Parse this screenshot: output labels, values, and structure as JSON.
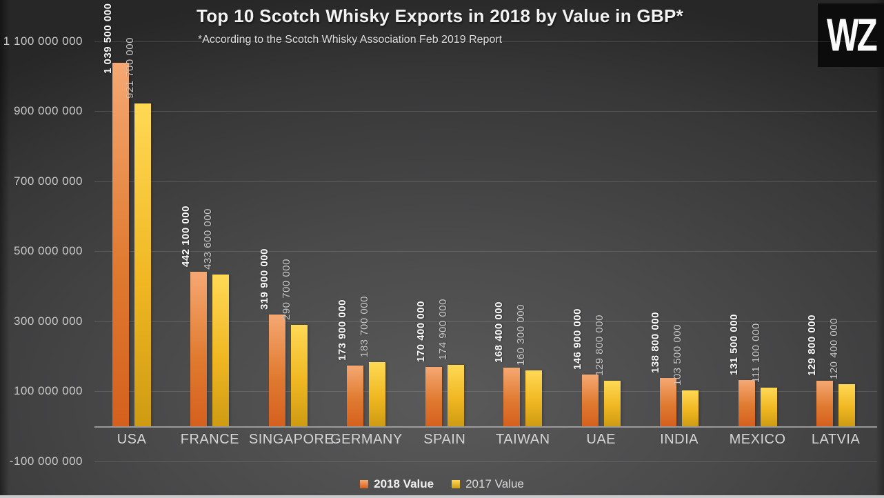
{
  "title": "Top 10 Scotch Whisky Exports in 2018 by Value in GBP*",
  "subtitle": "*According to the Scotch Whisky Association Feb 2019 Report",
  "logo_text": "WZ",
  "legend": [
    {
      "label": "2018 Value",
      "color_top": "#F5A873",
      "color_bottom": "#D5601E"
    },
    {
      "label": "2017 Value",
      "color_top": "#FFD955",
      "color_bottom": "#CE9B12"
    }
  ],
  "chart_data": {
    "type": "bar",
    "title": "Top 10 Scotch Whisky Exports in 2018 by Value in GBP*",
    "subtitle": "*According to the Scotch Whisky Association Feb 2019 Report",
    "categories": [
      "USA",
      "FRANCE",
      "SINGAPORE",
      "GERMANY",
      "SPAIN",
      "TAIWAN",
      "UAE",
      "INDIA",
      "MEXICO",
      "LATVIA"
    ],
    "series": [
      {
        "name": "2018 Value",
        "values": [
          1039500000,
          442100000,
          319900000,
          173900000,
          170400000,
          168400000,
          146900000,
          138800000,
          131500000,
          129800000
        ],
        "labels": [
          "1 039 500 000",
          "442 100 000",
          "319 900 000",
          "173 900 000",
          "170 400 000",
          "168 400 000",
          "146 900 000",
          "138 800 000",
          "131 500 000",
          "129 800 000"
        ],
        "color_top": "#F5A873",
        "color_mid": "#E07B31",
        "color_bottom": "#D5601E"
      },
      {
        "name": "2017 Value",
        "values": [
          921700000,
          433600000,
          290700000,
          183700000,
          174900000,
          160300000,
          129800000,
          103500000,
          111100000,
          120400000
        ],
        "labels": [
          "921 700 000",
          "433 600 000",
          "290 700 000",
          "183 700 000",
          "174 900 000",
          "160 300 000",
          "129 800 000",
          "103 500 000",
          "111 100 000",
          "120 400 000"
        ],
        "color_top": "#FFD955",
        "color_mid": "#F0B722",
        "color_bottom": "#CE9B12"
      }
    ],
    "ylabel": "",
    "xlabel": "",
    "ylim": [
      -100000000,
      1100000000
    ],
    "grid": true,
    "legend_position": "bottom",
    "yticks": [
      {
        "value": 1100000000,
        "label": "1 100 000 000"
      },
      {
        "value": 900000000,
        "label": "900 000 000"
      },
      {
        "value": 700000000,
        "label": "700 000 000"
      },
      {
        "value": 500000000,
        "label": "500 000 000"
      },
      {
        "value": 300000000,
        "label": "300 000 000"
      },
      {
        "value": 100000000,
        "label": "100 000 000"
      },
      {
        "value": -100000000,
        "label": "-100 000 000"
      }
    ]
  }
}
